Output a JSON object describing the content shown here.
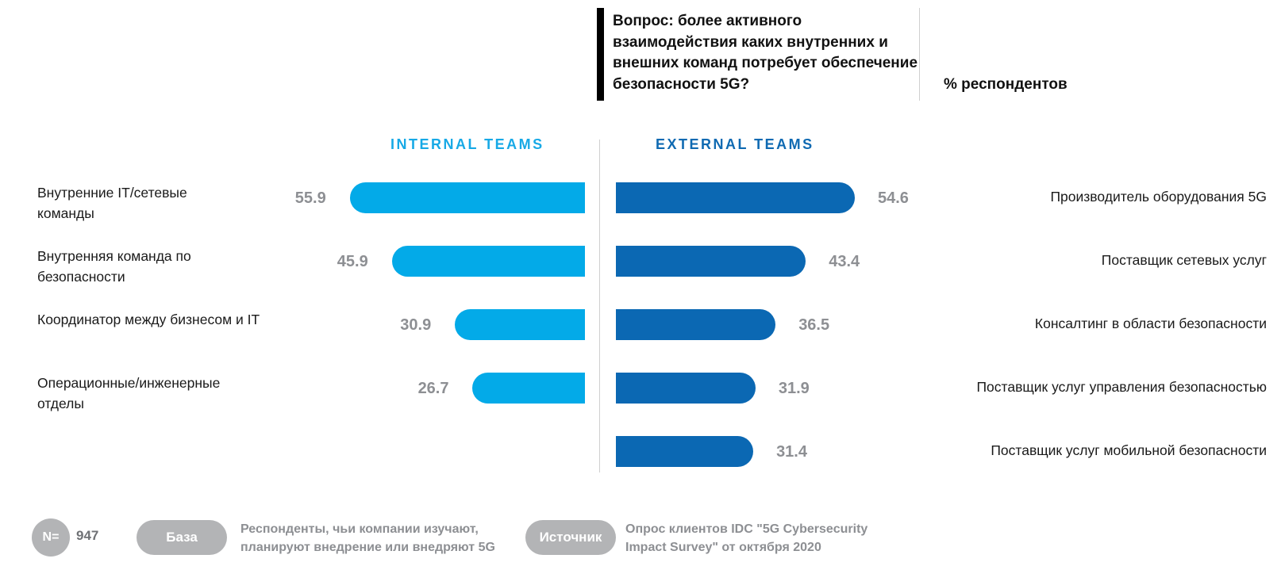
{
  "header": {
    "question": "Вопрос: более активного взаимодействия каких внутренних и внешних команд потребует обеспечение безопасности 5G?",
    "unit_label": "% респондентов"
  },
  "chart_data": {
    "type": "bar",
    "orientation": "horizontal",
    "xlim": [
      0,
      60
    ],
    "groups": [
      {
        "name": "INTERNAL TEAMS",
        "color": "#03aae8",
        "categories": [
          "Внутренние IT/сетевые команды",
          "Внутренняя команда по безопасности",
          "Координатор между бизнесом и IT",
          "Операционные/инженерные отделы"
        ],
        "values": [
          55.9,
          45.9,
          30.9,
          26.7
        ]
      },
      {
        "name": "EXTERNAL TEAMS",
        "color": "#0b68b3",
        "categories": [
          "Производитель оборудования 5G",
          "Поставщик сетевых услуг",
          "Консалтинг в области безопасности",
          "Поставщик услуг управления безопасностью",
          "Поставщик услуг мобильной безопасности"
        ],
        "values": [
          54.6,
          43.4,
          36.5,
          31.9,
          31.4
        ]
      }
    ]
  },
  "footer": {
    "n_label": "N=",
    "n_value": "947",
    "base_label": "База",
    "base_text": "Респонденты, чьи компании изучают, планируют внедрение или внедряют 5G",
    "source_label": "Источник",
    "source_text": "Опрос клиентов IDC \"5G Cybersecurity Impact Survey\" от октября 2020"
  }
}
